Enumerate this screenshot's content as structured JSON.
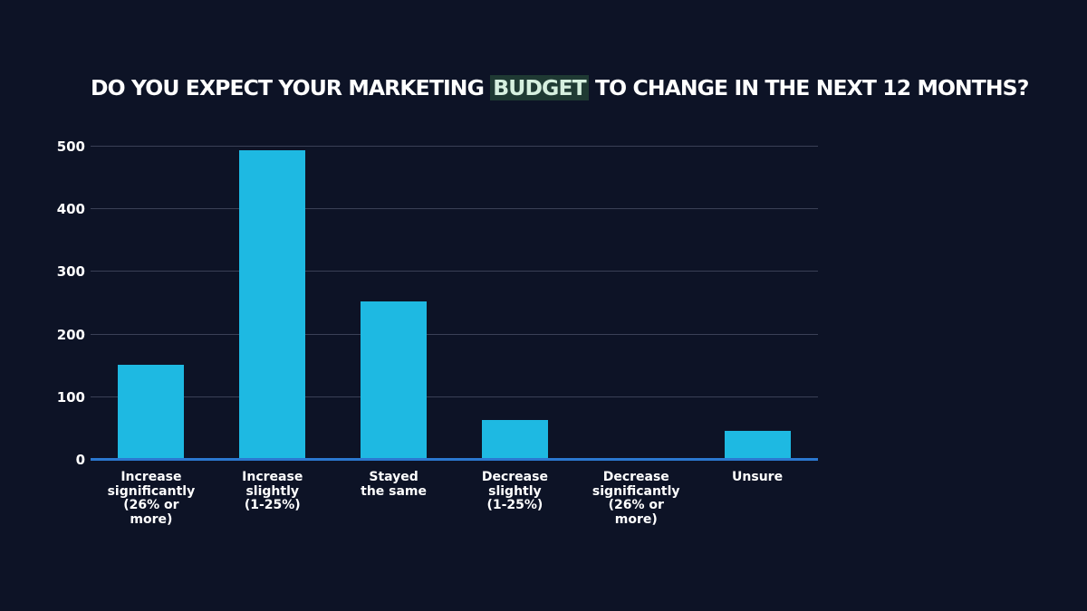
{
  "title": {
    "before": "DO YOU EXPECT YOUR MARKETING ",
    "highlight": "BUDGET",
    "after": " TO CHANGE IN THE NEXT 12 MONTHS?"
  },
  "colors": {
    "background": "#0d1326",
    "bar": "#1eb9e2",
    "axis": "#2b78d0",
    "gridline": "#3a4056",
    "highlight_bg": "#1f3a33",
    "highlight_text": "#d6f0df"
  },
  "y_ticks": [
    "500",
    "400",
    "300",
    "200",
    "100",
    "0"
  ],
  "categories": [
    "Increase\nsignificantly\n(26% or\nmore)",
    "Increase\nslightly\n(1-25%)",
    "Stayed\nthe same",
    "Decrease\nslightly\n(1-25%)",
    "Decrease\nsignificantly\n(26% or\nmore)",
    "Unsure"
  ],
  "chart_data": {
    "type": "bar",
    "title": "DO YOU EXPECT YOUR MARKETING BUDGET TO CHANGE IN THE NEXT 12 MONTHS?",
    "categories": [
      "Increase significantly (26% or more)",
      "Increase slightly (1-25%)",
      "Stayed the same",
      "Decrease slightly (1-25%)",
      "Decrease significantly (26% or more)",
      "Unsure"
    ],
    "values": [
      150,
      493,
      251,
      62,
      0,
      45
    ],
    "xlabel": "",
    "ylabel": "",
    "ylim": [
      0,
      500
    ],
    "yticks": [
      0,
      100,
      200,
      300,
      400,
      500
    ],
    "grid": true,
    "legend": null
  }
}
